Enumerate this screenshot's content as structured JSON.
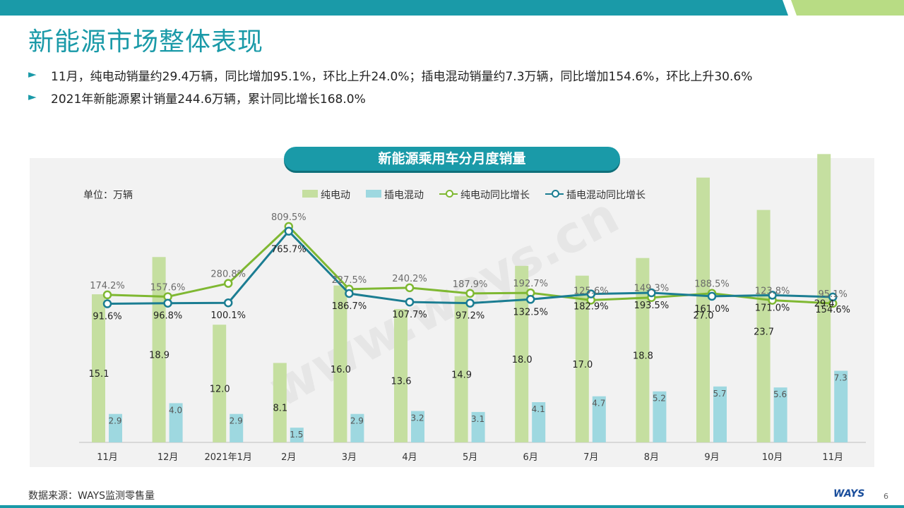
{
  "page": {
    "title": "新能源市场整体表现",
    "bullets": [
      "11月，纯电动销量约29.4万辆，同比增加95.1%，环比上升24.0%；插电混动销量约7.3万辆，同比增加154.6%，环比上升30.6%",
      "2021年新能源累计销量244.6万辆，累计同比增长168.0%"
    ],
    "bullet_icon": "triangle-right-icon",
    "source": "数据来源：WAYS监测零售量",
    "logo_text": "WAYS",
    "page_number": "6",
    "watermark": "www.ways.cn",
    "colors": {
      "teal": "#1a9aa8",
      "green_bar": "#c5dfa0",
      "blue_bar": "#9ed8e0",
      "green_line": "#7fb832",
      "blue_line": "#1b7d92",
      "top_green": "#b8dc84"
    }
  },
  "chart_data": {
    "type": "bar",
    "title": "新能源乘用车分月度销量",
    "unit_label": "单位：万辆",
    "categories": [
      "11月",
      "12月",
      "2021年1月",
      "2月",
      "3月",
      "4月",
      "5月",
      "6月",
      "7月",
      "8月",
      "9月",
      "10月",
      "11月"
    ],
    "series": [
      {
        "name": "纯电动",
        "kind": "bar",
        "values": [
          15.1,
          18.9,
          12.0,
          8.1,
          16.0,
          13.6,
          14.9,
          18.0,
          17.0,
          18.8,
          27.0,
          23.7,
          29.4
        ]
      },
      {
        "name": "插电混动",
        "kind": "bar",
        "values": [
          2.9,
          4.0,
          2.9,
          1.5,
          2.9,
          3.2,
          3.1,
          4.1,
          4.7,
          5.2,
          5.7,
          5.6,
          7.3
        ]
      },
      {
        "name": "纯电动同比增长",
        "kind": "line",
        "unit": "%",
        "values": [
          174.2,
          157.6,
          280.8,
          809.5,
          227.5,
          240.2,
          187.9,
          192.7,
          125.6,
          149.3,
          188.5,
          123.8,
          95.1
        ]
      },
      {
        "name": "插电混动同比增长",
        "kind": "line",
        "unit": "%",
        "values": [
          91.6,
          96.8,
          100.1,
          765.7,
          186.7,
          107.7,
          97.2,
          132.5,
          182.9,
          193.5,
          161.0,
          171.0,
          154.6
        ]
      }
    ],
    "bar_ylim": [
      0,
      30
    ],
    "line_ylim": [
      0,
      900
    ],
    "grid": false,
    "legend_position": "top-center"
  }
}
